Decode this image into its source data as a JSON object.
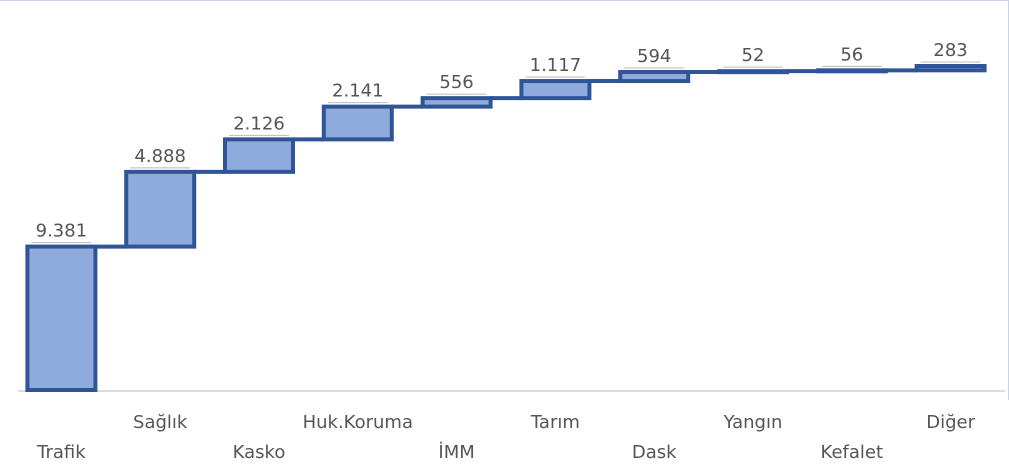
{
  "chart_data": {
    "type": "waterfall",
    "categories": [
      "Trafik",
      "Sağlık",
      "Kasko",
      "Huk.Koruma",
      "İMM",
      "Tarım",
      "Dask",
      "Yangın",
      "Kefalet",
      "Diğer"
    ],
    "values": [
      9381,
      4888,
      2126,
      2141,
      556,
      1117,
      594,
      52,
      56,
      283
    ],
    "value_labels": [
      "9.381",
      "4.888",
      "2.126",
      "2.141",
      "556",
      "1.117",
      "594",
      "52",
      "56",
      "283"
    ],
    "color": "#8faadc",
    "edge_color": "#2f5597"
  }
}
